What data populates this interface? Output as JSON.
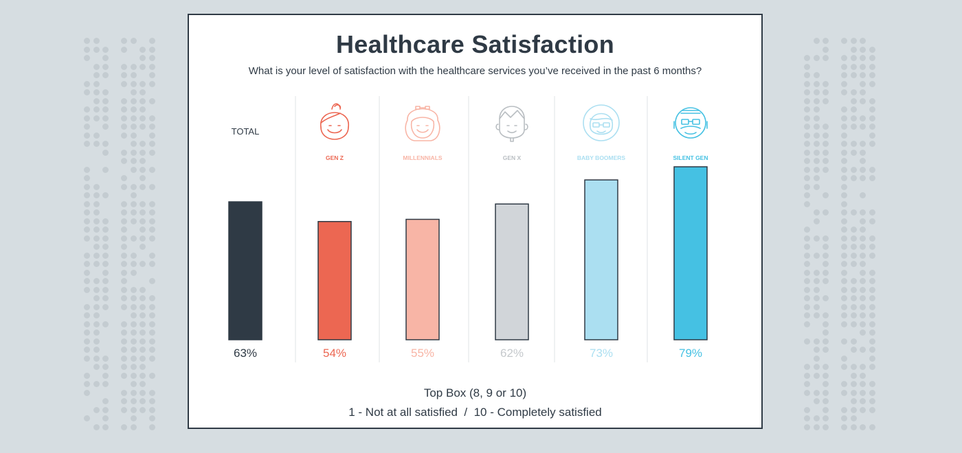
{
  "title": "Healthcare Satisfaction",
  "subtitle": "What is your level of satisfaction with the healthcare services you’ve received in the past 6 months?",
  "footer": {
    "line1": "Top Box (8, 9 or 10)",
    "line2": "1 - Not at all satisfied  /  10 - Completely satisfied"
  },
  "chart_data": {
    "type": "bar",
    "categories": [
      "TOTAL",
      "GEN Z",
      "MILLENNIALS",
      "GEN X",
      "BABY BOOMERS",
      "SILENT GEN"
    ],
    "values": [
      63,
      54,
      55,
      62,
      73,
      79
    ],
    "value_labels": [
      "63%",
      "54%",
      "55%",
      "62%",
      "73%",
      "79%"
    ],
    "bar_colors": [
      "#2f3a45",
      "#ec6752",
      "#f8b5a6",
      "#d1d5d9",
      "#abdff1",
      "#45c1e3"
    ],
    "label_colors": [
      "#2f3a45",
      "#ec6752",
      "#f8b5a6",
      "#c5c9cc",
      "#abdff1",
      "#45c1e3"
    ],
    "icons": [
      "",
      "gen-z-icon",
      "millennials-icon",
      "gen-x-icon",
      "baby-boomers-icon",
      "silent-gen-icon"
    ],
    "ylim": [
      0,
      100
    ],
    "grid": false
  }
}
